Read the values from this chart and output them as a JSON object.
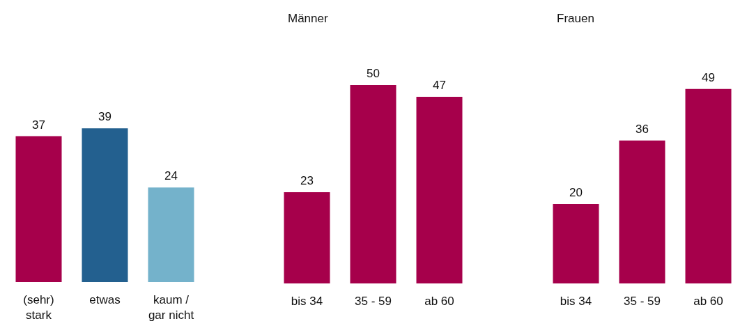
{
  "chart_data": [
    {
      "type": "bar",
      "categories": [
        "(sehr)\nstark",
        "etwas",
        "kaum /\ngar nicht"
      ],
      "values": [
        37,
        39,
        24
      ],
      "colors": [
        "#a6004b",
        "#23608f",
        "#74b2cb"
      ],
      "data_labels": true
    },
    {
      "type": "bar",
      "title": "Männer",
      "categories": [
        "bis 34",
        "35 - 59",
        "ab 60"
      ],
      "values": [
        23,
        50,
        47
      ],
      "color": "#a6004b",
      "data_labels": true
    },
    {
      "type": "bar",
      "title": "Frauen",
      "categories": [
        "bis 34",
        "35 - 59",
        "ab 60"
      ],
      "values": [
        20,
        36,
        49
      ],
      "color": "#a6004b",
      "data_labels": true
    }
  ]
}
